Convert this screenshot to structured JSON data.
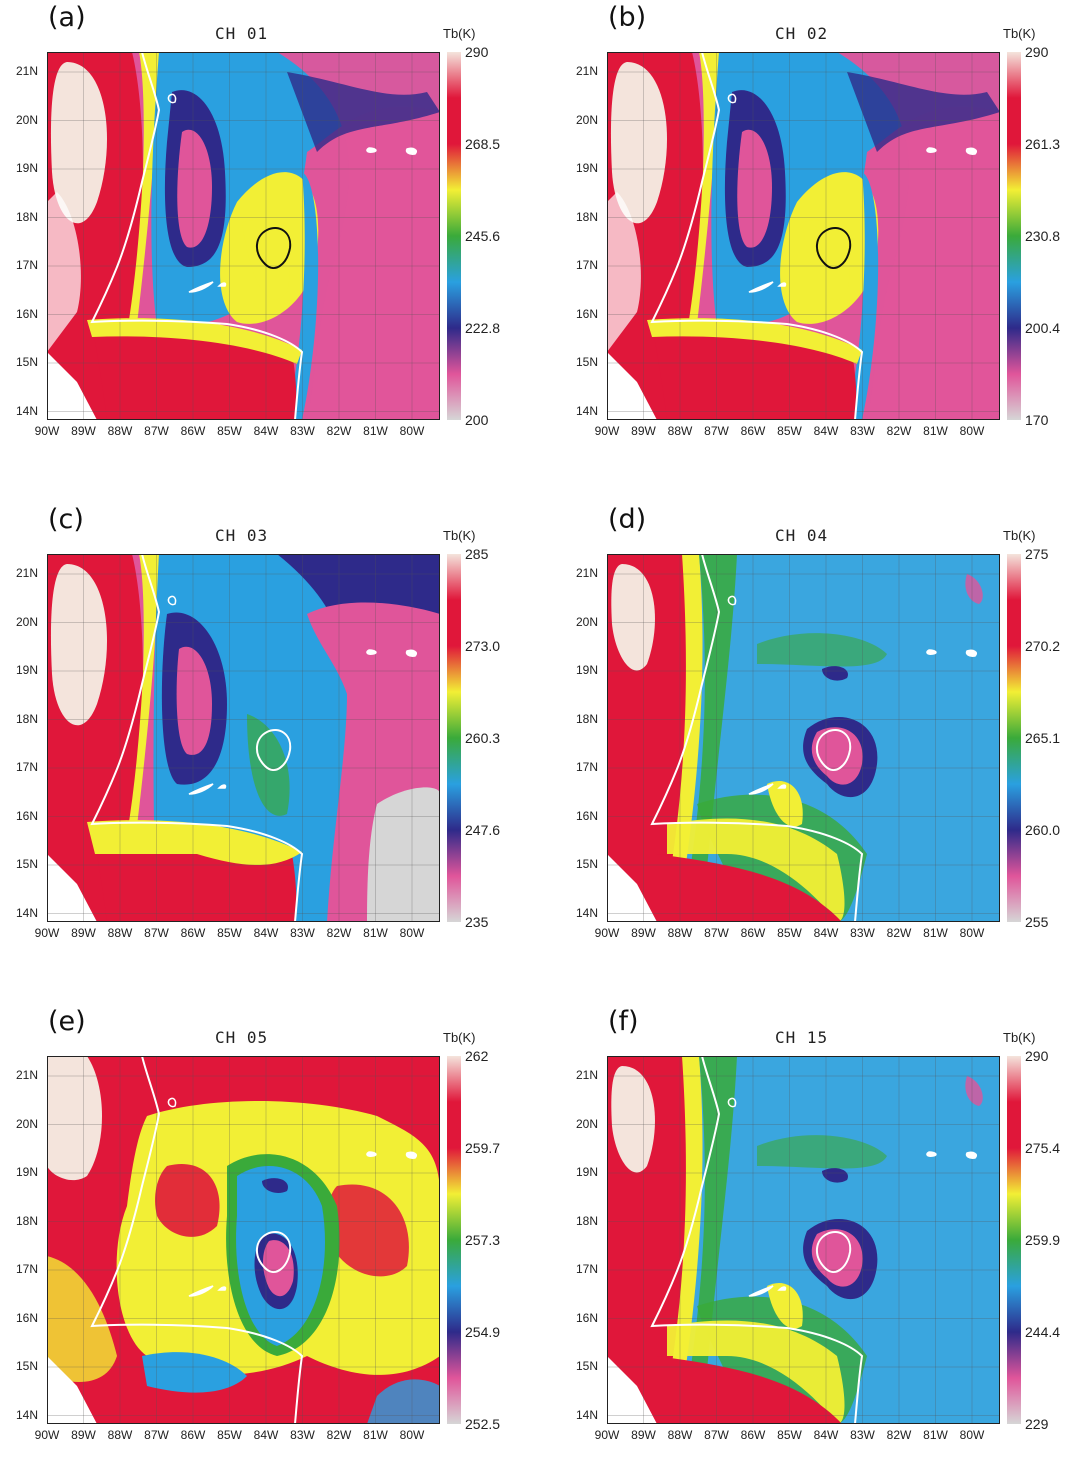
{
  "units": "Tb(K)",
  "lat_labels": [
    "21N",
    "20N",
    "19N",
    "18N",
    "17N",
    "16N",
    "15N",
    "14N"
  ],
  "lon_labels": [
    "90W",
    "89W",
    "88W",
    "87W",
    "86W",
    "85W",
    "84W",
    "83W",
    "82W",
    "81W",
    "80W"
  ],
  "palette": [
    "#d6d6d6",
    "#e0559a",
    "#2e2a8a",
    "#2aa0e0",
    "#3aaa3a",
    "#f2ef35",
    "#e0173a",
    "#f4e4dc"
  ],
  "panels": [
    {
      "id": "a",
      "tag": "(a)",
      "title": "CH 01",
      "scale": [
        "290",
        "268.5",
        "245.6",
        "222.8",
        "200"
      ],
      "base": "#e0559a",
      "scheme": "ch01",
      "center_outline": "#111111"
    },
    {
      "id": "b",
      "tag": "(b)",
      "title": "CH 02",
      "scale": [
        "290",
        "261.3",
        "230.8",
        "200.4",
        "170"
      ],
      "base": "#e0559a",
      "scheme": "ch01",
      "center_outline": "#111111"
    },
    {
      "id": "c",
      "tag": "(c)",
      "title": "CH 03",
      "scale": [
        "285",
        "273.0",
        "260.3",
        "247.6",
        "235"
      ],
      "base": "#e0559a",
      "scheme": "ch03",
      "center_outline": "#ffffff"
    },
    {
      "id": "d",
      "tag": "(d)",
      "title": "CH 04",
      "scale": [
        "275",
        "270.2",
        "265.1",
        "260.0",
        "255"
      ],
      "base": "#3aa6df",
      "scheme": "ch04",
      "center_outline": "#ffffff"
    },
    {
      "id": "e",
      "tag": "(e)",
      "title": "CH 05",
      "scale": [
        "262",
        "259.7",
        "257.3",
        "254.9",
        "252.5"
      ],
      "base": "#e0173a",
      "scheme": "ch05",
      "center_outline": "#ffffff"
    },
    {
      "id": "f",
      "tag": "(f)",
      "title": "CH 15",
      "scale": [
        "290",
        "275.4",
        "259.9",
        "244.4",
        "229"
      ],
      "base": "#3aa6df",
      "scheme": "ch04",
      "center_outline": "#ffffff"
    }
  ]
}
